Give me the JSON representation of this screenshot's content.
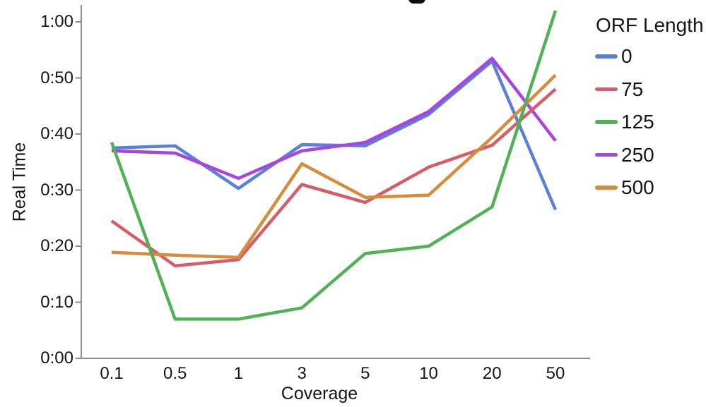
{
  "colors": {
    "axis": "#8e8e8e",
    "text": "#151515",
    "background": "#ffffff",
    "title_fragment": "#0c0c0c"
  },
  "title_fragment": {
    "description": "bottom fragment of a cropped-off chart title letter descender"
  },
  "chart_data": {
    "type": "line",
    "xlabel": "Coverage",
    "ylabel": "Real Time",
    "x_scale": "ordinal",
    "categories": [
      "0.1",
      "0.5",
      "1",
      "3",
      "5",
      "10",
      "20",
      "50"
    ],
    "y_axis": {
      "unit": "time (h:mm)",
      "tick_labels": [
        "0:00",
        "0:10",
        "0:20",
        "0:30",
        "0:40",
        "0:50",
        "1:00"
      ],
      "tick_minutes": [
        0,
        10,
        20,
        30,
        40,
        50,
        60
      ],
      "range_minutes": [
        0,
        62.5
      ]
    },
    "grid": false,
    "legend": {
      "title": "ORF Length",
      "position": "right"
    },
    "series": [
      {
        "name": "0",
        "color": "#5b80d9",
        "values_minutes": [
          37.5,
          37.9,
          30.3,
          38.1,
          37.9,
          43.5,
          53.0,
          26.5
        ]
      },
      {
        "name": "75",
        "color": "#d85c68",
        "values_minutes": [
          24.5,
          16.5,
          17.6,
          31.0,
          27.8,
          34.1,
          38.0,
          48.0
        ]
      },
      {
        "name": "125",
        "color": "#50b254",
        "values_minutes": [
          38.5,
          7.0,
          7.0,
          9.0,
          18.7,
          20.0,
          27.0,
          62.0
        ]
      },
      {
        "name": "250",
        "color": "#a845e1",
        "values_minutes": [
          37.0,
          36.6,
          32.1,
          37.0,
          38.5,
          44.0,
          53.5,
          38.8
        ]
      },
      {
        "name": "500",
        "color": "#d78b3d",
        "values_minutes": [
          18.9,
          18.4,
          18.0,
          34.7,
          28.7,
          29.1,
          39.4,
          50.5
        ]
      }
    ]
  }
}
